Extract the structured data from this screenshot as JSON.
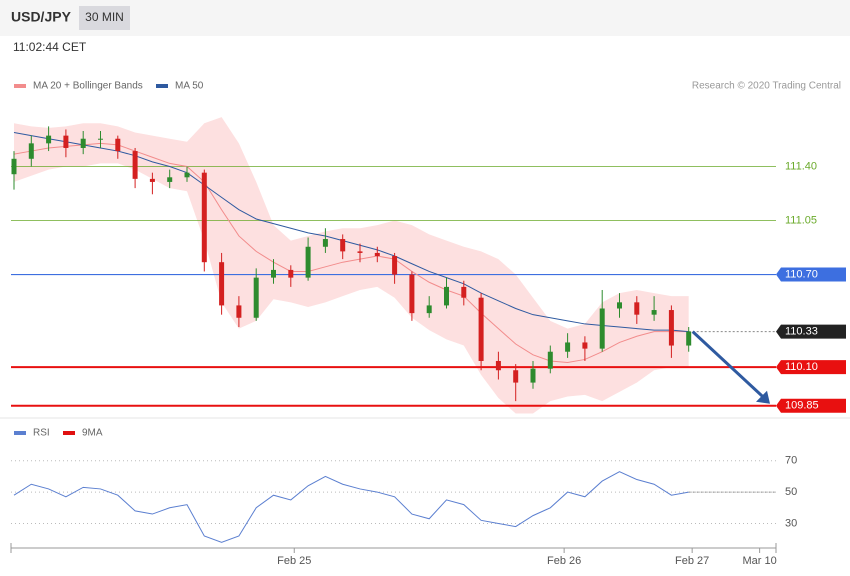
{
  "header": {
    "symbol": "USD/JPY",
    "timeframe": "30 MIN",
    "time": "11:02:44 CET"
  },
  "chart_data": {
    "type": "candlestick",
    "source": "Research © 2020 Trading Central",
    "ylim": [
      109.79,
      112.09
    ],
    "xlim": [
      0,
      44
    ],
    "xticks": [
      {
        "value": 16.2,
        "label": "Feb 25"
      },
      {
        "value": 31.8,
        "label": "Feb 26"
      },
      {
        "value": 39.2,
        "label": "Feb 27"
      },
      {
        "value": 43.1,
        "label": "Mar 10"
      }
    ],
    "candles": [
      {
        "open": 111.35,
        "high": 111.5,
        "low": 111.25,
        "close": 111.45
      },
      {
        "open": 111.45,
        "high": 111.6,
        "low": 111.4,
        "close": 111.55
      },
      {
        "open": 111.55,
        "high": 111.66,
        "low": 111.5,
        "close": 111.6
      },
      {
        "open": 111.6,
        "high": 111.64,
        "low": 111.46,
        "close": 111.52
      },
      {
        "open": 111.52,
        "high": 111.63,
        "low": 111.48,
        "close": 111.58
      },
      {
        "open": 111.58,
        "high": 111.63,
        "low": 111.52,
        "close": 111.58
      },
      {
        "open": 111.58,
        "high": 111.6,
        "low": 111.45,
        "close": 111.5
      },
      {
        "open": 111.5,
        "high": 111.52,
        "low": 111.26,
        "close": 111.32
      },
      {
        "open": 111.32,
        "high": 111.36,
        "low": 111.22,
        "close": 111.3
      },
      {
        "open": 111.3,
        "high": 111.38,
        "low": 111.26,
        "close": 111.33
      },
      {
        "open": 111.33,
        "high": 111.4,
        "low": 111.3,
        "close": 111.36
      },
      {
        "open": 111.36,
        "high": 111.38,
        "low": 110.72,
        "close": 110.78
      },
      {
        "open": 110.78,
        "high": 110.84,
        "low": 110.44,
        "close": 110.5
      },
      {
        "open": 110.5,
        "high": 110.56,
        "low": 110.36,
        "close": 110.42
      },
      {
        "open": 110.42,
        "high": 110.74,
        "low": 110.4,
        "close": 110.68
      },
      {
        "open": 110.68,
        "high": 110.8,
        "low": 110.64,
        "close": 110.73
      },
      {
        "open": 110.73,
        "high": 110.76,
        "low": 110.62,
        "close": 110.68
      },
      {
        "open": 110.68,
        "high": 110.94,
        "low": 110.66,
        "close": 110.88
      },
      {
        "open": 110.88,
        "high": 111.0,
        "low": 110.84,
        "close": 110.93
      },
      {
        "open": 110.93,
        "high": 110.96,
        "low": 110.8,
        "close": 110.85
      },
      {
        "open": 110.85,
        "high": 110.9,
        "low": 110.78,
        "close": 110.84
      },
      {
        "open": 110.84,
        "high": 110.88,
        "low": 110.78,
        "close": 110.82
      },
      {
        "open": 110.82,
        "high": 110.84,
        "low": 110.64,
        "close": 110.7
      },
      {
        "open": 110.7,
        "high": 110.72,
        "low": 110.4,
        "close": 110.45
      },
      {
        "open": 110.45,
        "high": 110.56,
        "low": 110.42,
        "close": 110.5
      },
      {
        "open": 110.5,
        "high": 110.68,
        "low": 110.48,
        "close": 110.62
      },
      {
        "open": 110.62,
        "high": 110.66,
        "low": 110.5,
        "close": 110.55
      },
      {
        "open": 110.55,
        "high": 110.58,
        "low": 110.08,
        "close": 110.14
      },
      {
        "open": 110.14,
        "high": 110.2,
        "low": 110.02,
        "close": 110.08
      },
      {
        "open": 110.08,
        "high": 110.12,
        "low": 109.88,
        "close": 110.0
      },
      {
        "open": 110.0,
        "high": 110.14,
        "low": 109.96,
        "close": 110.09
      },
      {
        "open": 110.09,
        "high": 110.24,
        "low": 110.06,
        "close": 110.2
      },
      {
        "open": 110.2,
        "high": 110.32,
        "low": 110.16,
        "close": 110.26
      },
      {
        "open": 110.26,
        "high": 110.3,
        "low": 110.14,
        "close": 110.22
      },
      {
        "open": 110.22,
        "high": 110.6,
        "low": 110.2,
        "close": 110.48
      },
      {
        "open": 110.48,
        "high": 110.58,
        "low": 110.42,
        "close": 110.52
      },
      {
        "open": 110.52,
        "high": 110.56,
        "low": 110.38,
        "close": 110.44
      },
      {
        "open": 110.44,
        "high": 110.56,
        "low": 110.4,
        "close": 110.47
      },
      {
        "open": 110.47,
        "high": 110.5,
        "low": 110.16,
        "close": 110.24
      },
      {
        "open": 110.24,
        "high": 110.36,
        "low": 110.2,
        "close": 110.33
      }
    ],
    "series": [
      {
        "name": "MA 20 + Bollinger Bands",
        "color": "#f28c8c",
        "values": [
          111.48,
          111.5,
          111.52,
          111.53,
          111.54,
          111.55,
          111.54,
          111.5,
          111.46,
          111.42,
          111.4,
          111.3,
          111.12,
          110.95,
          110.85,
          110.78,
          110.72,
          110.72,
          110.75,
          110.78,
          110.8,
          110.82,
          110.8,
          110.72,
          110.65,
          110.6,
          110.56,
          110.45,
          110.35,
          110.25,
          110.18,
          110.14,
          110.13,
          110.15,
          110.2,
          110.26,
          110.3,
          110.33,
          110.33,
          110.33
        ]
      },
      {
        "name": "MA 50",
        "color": "#2f5aa0",
        "values": [
          111.62,
          111.6,
          111.58,
          111.56,
          111.54,
          111.52,
          111.5,
          111.47,
          111.43,
          111.4,
          111.36,
          111.28,
          111.2,
          111.12,
          111.06,
          111.03,
          111.0,
          110.97,
          110.95,
          110.92,
          110.89,
          110.86,
          110.82,
          110.77,
          110.72,
          110.68,
          110.64,
          110.58,
          110.53,
          110.48,
          110.44,
          110.42,
          110.4,
          110.38,
          110.37,
          110.36,
          110.35,
          110.34,
          110.34,
          110.33
        ]
      }
    ],
    "bands": {
      "color": "#fde0e0",
      "upper": [
        111.68,
        111.66,
        111.65,
        111.66,
        111.68,
        111.68,
        111.66,
        111.62,
        111.6,
        111.58,
        111.56,
        111.68,
        111.72,
        111.55,
        111.3,
        111.02,
        110.92,
        110.95,
        110.98,
        111.0,
        111.0,
        111.02,
        111.05,
        111.02,
        110.96,
        110.92,
        110.88,
        110.85,
        110.8,
        110.7,
        110.55,
        110.4,
        110.35,
        110.38,
        110.52,
        110.58,
        110.6,
        110.58,
        110.56,
        110.56
      ],
      "lower": [
        111.3,
        111.34,
        111.38,
        111.4,
        111.4,
        111.42,
        111.42,
        111.38,
        111.32,
        111.26,
        111.24,
        110.92,
        110.52,
        110.35,
        110.4,
        110.54,
        110.52,
        110.49,
        110.52,
        110.56,
        110.6,
        110.62,
        110.55,
        110.42,
        110.34,
        110.28,
        110.24,
        110.05,
        109.9,
        109.8,
        109.8,
        109.88,
        109.91,
        109.92,
        109.88,
        109.94,
        110.0,
        110.08,
        110.1,
        110.1
      ]
    },
    "levels": [
      {
        "value": 111.4,
        "label": "111.40",
        "color": "#6aaa2a",
        "style": "thin"
      },
      {
        "value": 111.05,
        "label": "111.05",
        "color": "#6aaa2a",
        "style": "thin"
      },
      {
        "value": 110.7,
        "label": "110.70",
        "color": "#3d6fe0",
        "style": "box"
      },
      {
        "value": 110.33,
        "label": "110.33",
        "color": "#222222",
        "style": "current"
      },
      {
        "value": 110.1,
        "label": "110.10",
        "color": "#e81010",
        "style": "thick"
      },
      {
        "value": 109.85,
        "label": "109.85",
        "color": "#e81010",
        "style": "thick"
      }
    ],
    "target": 109.85,
    "rsi": {
      "ylim": [
        15,
        80
      ],
      "yticks": [
        30,
        50,
        70
      ],
      "series": [
        {
          "name": "RSI",
          "color": "#5b7fd0",
          "values": [
            48,
            55,
            52,
            47,
            53,
            52,
            48,
            38,
            36,
            40,
            42,
            22,
            18,
            22,
            40,
            48,
            45,
            54,
            60,
            55,
            52,
            50,
            47,
            36,
            33,
            45,
            42,
            32,
            30,
            28,
            35,
            40,
            50,
            47,
            57,
            63,
            58,
            55,
            48,
            50
          ]
        },
        {
          "name": "9MA",
          "color": "#e01010"
        }
      ]
    }
  }
}
